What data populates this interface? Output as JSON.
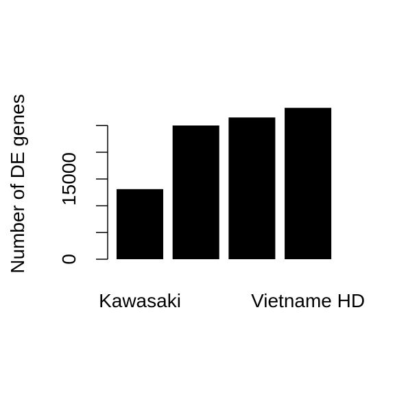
{
  "chart_data": {
    "type": "bar",
    "ylabel": "Number of DE genes",
    "categories": [
      "Kawasaki",
      null,
      null,
      "Vietname HD"
    ],
    "values": [
      13100,
      25000,
      26500,
      28300
    ],
    "color": "#000000",
    "ylim": [
      0,
      30000
    ],
    "yticks": [
      0,
      {
        "value": 5000
      },
      {
        "value": 10000
      },
      15000,
      {
        "value": 20000
      },
      {
        "value": 25000
      }
    ],
    "grid": false
  }
}
